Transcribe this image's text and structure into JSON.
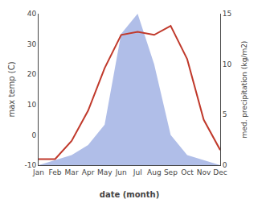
{
  "chart_data": {
    "type": "line",
    "xlabel": "date (month)",
    "ylabel": "max temp (C)",
    "y2label": "med. precipitation (kg/m2)",
    "categories": [
      "Jan",
      "Feb",
      "Mar",
      "Apr",
      "May",
      "Jun",
      "Jul",
      "Aug",
      "Sep",
      "Oct",
      "Nov",
      "Dec"
    ],
    "series": [
      {
        "type": "area",
        "axis": "y2",
        "color": "#b0bee8",
        "values": [
          0,
          0.5,
          1,
          2,
          4,
          13,
          15,
          10,
          3,
          1,
          0.5,
          0
        ]
      },
      {
        "type": "line",
        "color": "#c0392b",
        "values": [
          -8,
          -8,
          -2,
          8,
          22,
          33,
          34,
          33,
          36,
          25,
          5,
          -5
        ]
      }
    ],
    "ylim": [
      -10,
      40
    ],
    "yticks": [
      -10,
      0,
      10,
      20,
      30,
      40
    ],
    "y2lim": [
      0,
      15
    ],
    "y2ticks": [
      0,
      5,
      10,
      15
    ],
    "grid": false
  }
}
